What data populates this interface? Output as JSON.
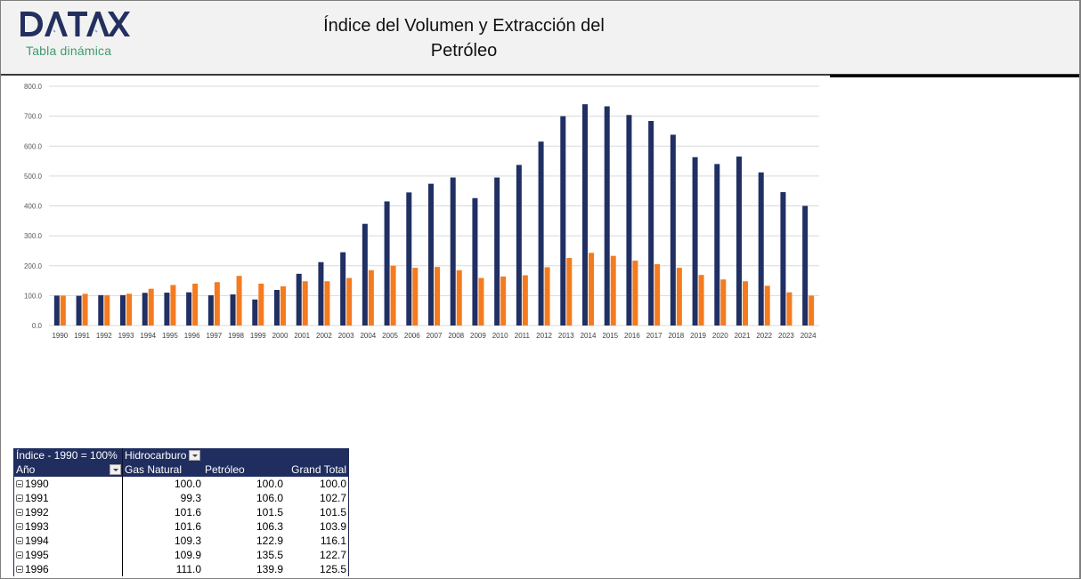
{
  "header": {
    "logo_text": "DATAX",
    "subtitle": "Tabla dinámica",
    "title_line1": "Índice del Volumen y Extracción del",
    "title_line2": "Petróleo"
  },
  "colors": {
    "gas_natural": "#203064",
    "petroleo": "#f47b20",
    "logo": "#23305f",
    "subtitle": "#3f9a72",
    "pivot_header": "#1f2d5f"
  },
  "chart_data": {
    "type": "bar",
    "title": "Índice del Volumen y Extracción del Petróleo",
    "xlabel": "",
    "ylabel": "",
    "ylim": [
      0,
      800
    ],
    "yticks": [
      "0.0",
      "100.0",
      "200.0",
      "300.0",
      "400.0",
      "500.0",
      "600.0",
      "700.0",
      "800.0"
    ],
    "grid": true,
    "legend": "none",
    "categories": [
      "1990",
      "1991",
      "1992",
      "1993",
      "1994",
      "1995",
      "1996",
      "1997",
      "1998",
      "1999",
      "2000",
      "2001",
      "2002",
      "2003",
      "2004",
      "2005",
      "2006",
      "2007",
      "2008",
      "2009",
      "2010",
      "2011",
      "2012",
      "2013",
      "2014",
      "2015",
      "2016",
      "2017",
      "2018",
      "2019",
      "2020",
      "2021",
      "2022",
      "2023",
      "2024"
    ],
    "series": [
      {
        "name": "Gas Natural",
        "color": "#203064",
        "values": [
          100.0,
          99.3,
          101.6,
          101.6,
          109.3,
          109.9,
          111.0,
          101,
          104,
          87,
          119,
          173,
          212,
          245,
          340,
          415,
          445,
          474,
          495,
          426,
          495,
          537,
          615,
          700,
          740,
          733,
          704,
          684,
          638,
          563,
          540,
          565,
          512,
          446,
          400
        ]
      },
      {
        "name": "Petróleo",
        "color": "#f47b20",
        "values": [
          100.0,
          106.0,
          101.5,
          106.3,
          122.9,
          135.5,
          139.9,
          145,
          166,
          140,
          131,
          148,
          148,
          159,
          185,
          200,
          193,
          196,
          185,
          159,
          164,
          168,
          195,
          226,
          243,
          233,
          217,
          205,
          193,
          169,
          154,
          148,
          133,
          111,
          100
        ]
      }
    ]
  },
  "pivot": {
    "corner_label": "Índice - 1990 = 100%",
    "column_field": "Hidrocarburo",
    "row_field": "Año",
    "columns": [
      "Gas Natural",
      "Petróleo",
      "Grand Total"
    ],
    "rows": [
      {
        "year": "1990",
        "gas": "100.0",
        "petroleo": "100.0",
        "total": "100.0"
      },
      {
        "year": "1991",
        "gas": "99.3",
        "petroleo": "106.0",
        "total": "102.7"
      },
      {
        "year": "1992",
        "gas": "101.6",
        "petroleo": "101.5",
        "total": "101.5"
      },
      {
        "year": "1993",
        "gas": "101.6",
        "petroleo": "106.3",
        "total": "103.9"
      },
      {
        "year": "1994",
        "gas": "109.3",
        "petroleo": "122.9",
        "total": "116.1"
      },
      {
        "year": "1995",
        "gas": "109.9",
        "petroleo": "135.5",
        "total": "122.7"
      },
      {
        "year": "1996",
        "gas": "111.0",
        "petroleo": "139.9",
        "total": "125.5"
      }
    ]
  }
}
